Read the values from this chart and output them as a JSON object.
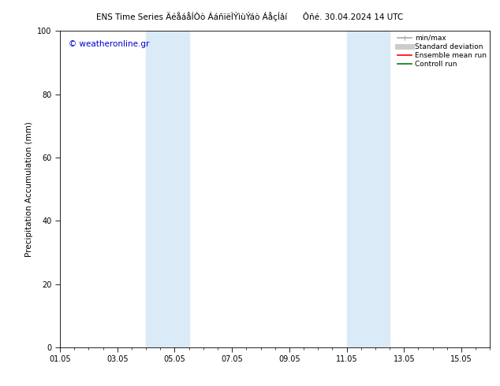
{
  "title_left": "ENS Time Series ÄéåáåÍÒò ÁáñïëÌÝìùÝáò ÁåçÍâí",
  "title_right": "Ôñé. 30.04.2024 14 UTC",
  "ylabel": "Precipitation Accumulation (mm)",
  "ylim": [
    0,
    100
  ],
  "xtick_positions": [
    1,
    3,
    5,
    7,
    9,
    11,
    13,
    15
  ],
  "xtick_labels": [
    "01.05",
    "03.05",
    "05.05",
    "07.05",
    "09.05",
    "11.05",
    "13.05",
    "15.05"
  ],
  "ytick_labels": [
    0,
    20,
    40,
    60,
    80,
    100
  ],
  "xlim": [
    1,
    16
  ],
  "shaded_bands": [
    {
      "x_start": 4.0,
      "x_end": 5.5,
      "color": "#daeaf7",
      "alpha": 1.0
    },
    {
      "x_start": 11.0,
      "x_end": 12.5,
      "color": "#daeaf7",
      "alpha": 1.0
    }
  ],
  "watermark_text": "© weatheronline.gr",
  "watermark_color": "#0000cc",
  "watermark_fontsize": 7.5,
  "background_color": "#ffffff",
  "legend_items": [
    {
      "label": "min/max",
      "color": "#aaaaaa",
      "lw": 1.2,
      "ls": "-",
      "marker": true
    },
    {
      "label": "Standard deviation",
      "color": "#cccccc",
      "lw": 5,
      "ls": "-",
      "marker": false
    },
    {
      "label": "Ensemble mean run",
      "color": "#ff0000",
      "lw": 1.2,
      "ls": "-",
      "marker": false
    },
    {
      "label": "Controll run",
      "color": "#008000",
      "lw": 1.2,
      "ls": "-",
      "marker": false
    }
  ],
  "title_fontsize": 7.5,
  "axis_label_fontsize": 7.5,
  "tick_fontsize": 7.0,
  "legend_fontsize": 6.5
}
